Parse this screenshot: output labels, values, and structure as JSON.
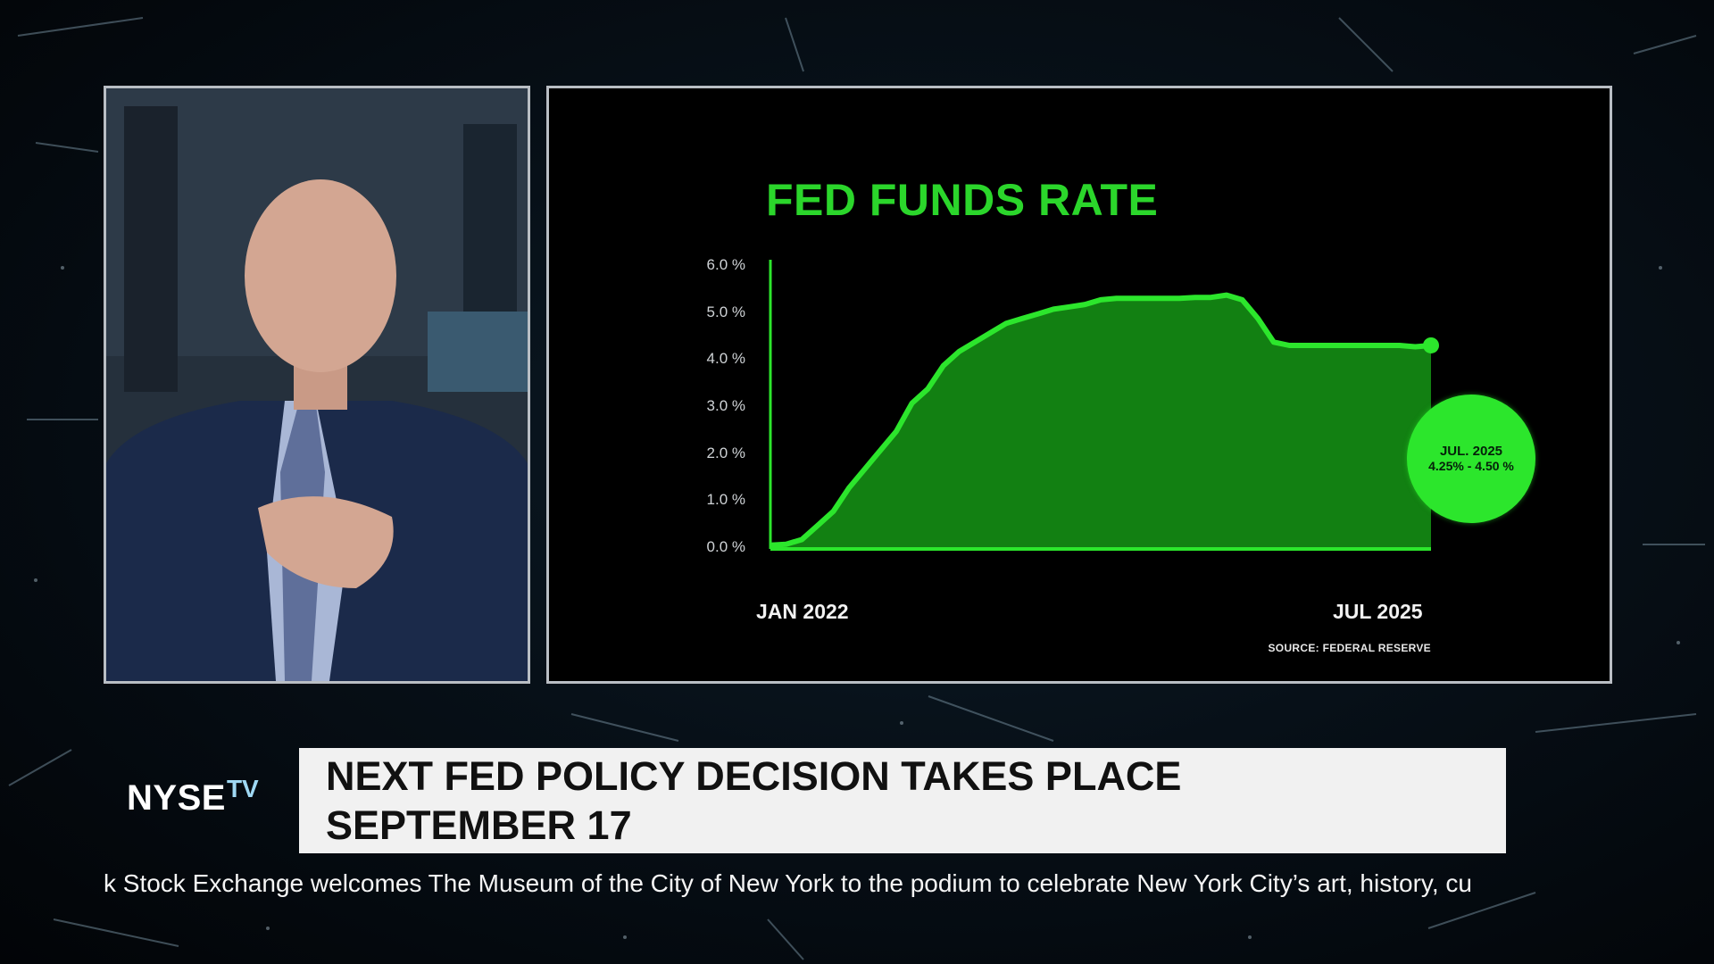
{
  "broadcast": {
    "logo": {
      "main": "NYSE",
      "sub": "TV"
    },
    "headline": {
      "line1": "NEXT FED POLICY DECISION TAKES PLACE",
      "line2": "SEPTEMBER 17"
    },
    "ticker_text": "k Stock Exchange welcomes The Museum of the City of New York to the podium to celebrate New York City’s art, history, cu"
  },
  "chart_data": {
    "type": "area",
    "title": "FED FUNDS RATE",
    "source": "SOURCE: FEDERAL RESERVE",
    "x_start_label": "JAN 2022",
    "x_end_label": "JUL 2025",
    "y_ticks": [
      "0.0 %",
      "1.0 %",
      "2.0 %",
      "3.0 %",
      "4.0 %",
      "5.0 %",
      "6.0 %"
    ],
    "ylim": [
      0,
      6
    ],
    "grid": false,
    "fill_color": "#128012",
    "line_color": "#2ce62c",
    "x": [
      0,
      1,
      2,
      3,
      4,
      5,
      6,
      7,
      8,
      9,
      10,
      11,
      12,
      13,
      14,
      15,
      16,
      17,
      18,
      19,
      20,
      21,
      22,
      23,
      24,
      25,
      26,
      27,
      28,
      29,
      30,
      31,
      32,
      33,
      34,
      35,
      36,
      37,
      38,
      39,
      40,
      41,
      42
    ],
    "values": [
      0.08,
      0.1,
      0.2,
      0.5,
      0.8,
      1.3,
      1.7,
      2.1,
      2.5,
      3.1,
      3.4,
      3.9,
      4.2,
      4.4,
      4.6,
      4.8,
      4.9,
      5.0,
      5.1,
      5.15,
      5.2,
      5.3,
      5.33,
      5.33,
      5.33,
      5.33,
      5.33,
      5.35,
      5.35,
      5.4,
      5.3,
      4.9,
      4.4,
      4.33,
      4.33,
      4.33,
      4.33,
      4.33,
      4.33,
      4.33,
      4.33,
      4.3,
      4.33
    ],
    "annotation": {
      "date": "JUL. 2025",
      "range": "4.25% - 4.50 %",
      "bubble_color": "#2ce62c"
    }
  }
}
